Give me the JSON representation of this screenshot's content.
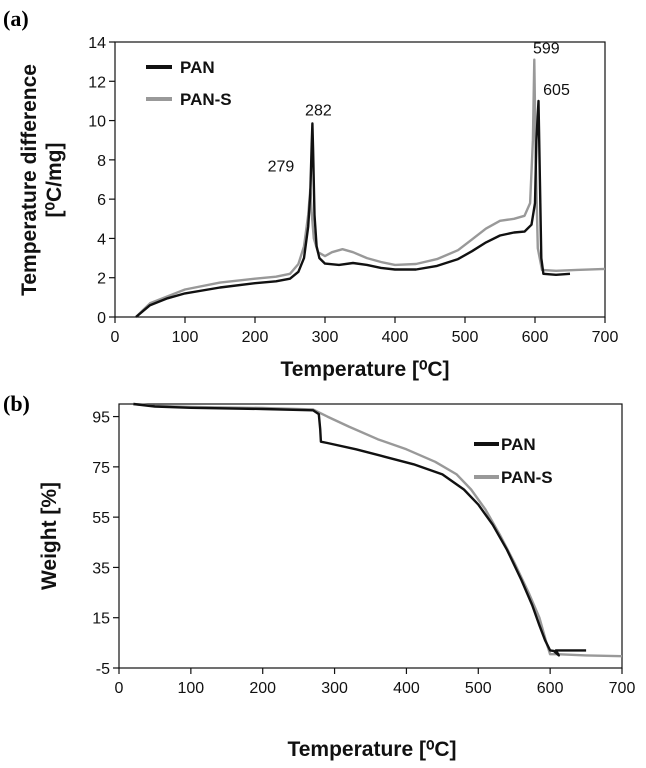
{
  "chart_data": [
    {
      "panel": "(a)",
      "type": "line",
      "xlabel": "Temperature [⁰C]",
      "ylabel_line1": "Temperature difference",
      "ylabel_line2": "[⁰C/mg]",
      "xlim": [
        0,
        700
      ],
      "ylim": [
        0,
        14
      ],
      "xticks": [
        0,
        100,
        200,
        300,
        400,
        500,
        600,
        700
      ],
      "yticks": [
        0,
        2,
        4,
        6,
        8,
        10,
        12,
        14
      ],
      "grid": false,
      "legend": "top-left",
      "series": [
        {
          "name": "PAN",
          "color": "#111111",
          "points": [
            [
              30,
              0
            ],
            [
              40,
              0.3
            ],
            [
              50,
              0.6
            ],
            [
              75,
              0.95
            ],
            [
              100,
              1.2
            ],
            [
              150,
              1.5
            ],
            [
              200,
              1.72
            ],
            [
              230,
              1.82
            ],
            [
              250,
              1.95
            ],
            [
              262,
              2.3
            ],
            [
              270,
              3.0
            ],
            [
              276,
              4.6
            ],
            [
              279,
              6.3
            ],
            [
              281,
              8.8
            ],
            [
              282,
              9.85
            ],
            [
              283,
              8.5
            ],
            [
              285,
              5.2
            ],
            [
              288,
              3.6
            ],
            [
              292,
              3.0
            ],
            [
              300,
              2.72
            ],
            [
              320,
              2.65
            ],
            [
              340,
              2.75
            ],
            [
              360,
              2.65
            ],
            [
              380,
              2.5
            ],
            [
              400,
              2.42
            ],
            [
              430,
              2.42
            ],
            [
              460,
              2.6
            ],
            [
              490,
              2.95
            ],
            [
              510,
              3.35
            ],
            [
              530,
              3.8
            ],
            [
              550,
              4.15
            ],
            [
              570,
              4.3
            ],
            [
              585,
              4.35
            ],
            [
              595,
              4.7
            ],
            [
              600,
              5.8
            ],
            [
              602,
              9.0
            ],
            [
              605,
              11.0
            ],
            [
              607,
              7.0
            ],
            [
              609,
              3.0
            ],
            [
              612,
              2.2
            ],
            [
              630,
              2.15
            ],
            [
              650,
              2.2
            ]
          ]
        },
        {
          "name": "PAN-S",
          "color": "#999999",
          "points": [
            [
              30,
              0
            ],
            [
              40,
              0.35
            ],
            [
              50,
              0.7
            ],
            [
              75,
              1.05
            ],
            [
              100,
              1.4
            ],
            [
              150,
              1.75
            ],
            [
              200,
              1.95
            ],
            [
              230,
              2.05
            ],
            [
              250,
              2.2
            ],
            [
              262,
              2.7
            ],
            [
              270,
              3.6
            ],
            [
              276,
              5.2
            ],
            [
              279,
              6.5
            ],
            [
              281,
              5.3
            ],
            [
              284,
              4.0
            ],
            [
              290,
              3.3
            ],
            [
              300,
              3.1
            ],
            [
              310,
              3.3
            ],
            [
              325,
              3.45
            ],
            [
              340,
              3.3
            ],
            [
              360,
              3.0
            ],
            [
              380,
              2.8
            ],
            [
              400,
              2.65
            ],
            [
              430,
              2.7
            ],
            [
              460,
              2.95
            ],
            [
              490,
              3.4
            ],
            [
              510,
              3.95
            ],
            [
              530,
              4.5
            ],
            [
              550,
              4.9
            ],
            [
              570,
              5.0
            ],
            [
              585,
              5.15
            ],
            [
              593,
              5.8
            ],
            [
              597,
              9.0
            ],
            [
              599,
              13.1
            ],
            [
              601,
              8.0
            ],
            [
              604,
              3.5
            ],
            [
              610,
              2.4
            ],
            [
              630,
              2.35
            ],
            [
              660,
              2.4
            ],
            [
              700,
              2.45
            ]
          ]
        }
      ],
      "annotations": [
        {
          "text": "282",
          "x": 282,
          "y": 9.85
        },
        {
          "text": "279",
          "x": 279,
          "y": 6.5
        },
        {
          "text": "599",
          "x": 599,
          "y": 13.1
        },
        {
          "text": "605",
          "x": 605,
          "y": 11.0
        }
      ]
    },
    {
      "panel": "(b)",
      "type": "line",
      "xlabel": "Temperature [⁰C]",
      "ylabel_line1": "Weight [%]",
      "xlim": [
        0,
        700
      ],
      "ylim": [
        -5,
        100
      ],
      "xticks": [
        0,
        100,
        200,
        300,
        400,
        500,
        600,
        700
      ],
      "yticks": [
        -5,
        15,
        35,
        55,
        75,
        95
      ],
      "grid": false,
      "legend": "top-right",
      "series": [
        {
          "name": "PAN",
          "color": "#111111",
          "points": [
            [
              20,
              100
            ],
            [
              50,
              99
            ],
            [
              100,
              98.5
            ],
            [
              200,
              98
            ],
            [
              270,
              97.5
            ],
            [
              278,
              96
            ],
            [
              280,
              90
            ],
            [
              281,
              85
            ],
            [
              290,
              84.5
            ],
            [
              330,
              82
            ],
            [
              370,
              79
            ],
            [
              410,
              76
            ],
            [
              450,
              72
            ],
            [
              480,
              66
            ],
            [
              500,
              60
            ],
            [
              520,
              52
            ],
            [
              540,
              42
            ],
            [
              560,
              30
            ],
            [
              575,
              20
            ],
            [
              585,
              12
            ],
            [
              593,
              6
            ],
            [
              600,
              2
            ],
            [
              605,
              1.8
            ],
            [
              612,
              0
            ],
            [
              608,
              2
            ],
            [
              620,
              2
            ],
            [
              650,
              2
            ]
          ]
        },
        {
          "name": "PAN-S",
          "color": "#999999",
          "points": [
            [
              20,
              100
            ],
            [
              50,
              99.3
            ],
            [
              100,
              98.8
            ],
            [
              200,
              98.4
            ],
            [
              270,
              97.8
            ],
            [
              290,
              95
            ],
            [
              320,
              91
            ],
            [
              360,
              86
            ],
            [
              400,
              82
            ],
            [
              440,
              77
            ],
            [
              470,
              72
            ],
            [
              490,
              66
            ],
            [
              510,
              58
            ],
            [
              530,
              48
            ],
            [
              550,
              37
            ],
            [
              570,
              25
            ],
            [
              585,
              15
            ],
            [
              595,
              5
            ],
            [
              600,
              0.5
            ],
            [
              610,
              0.5
            ],
            [
              650,
              0
            ],
            [
              700,
              -0.3
            ]
          ]
        }
      ]
    }
  ]
}
